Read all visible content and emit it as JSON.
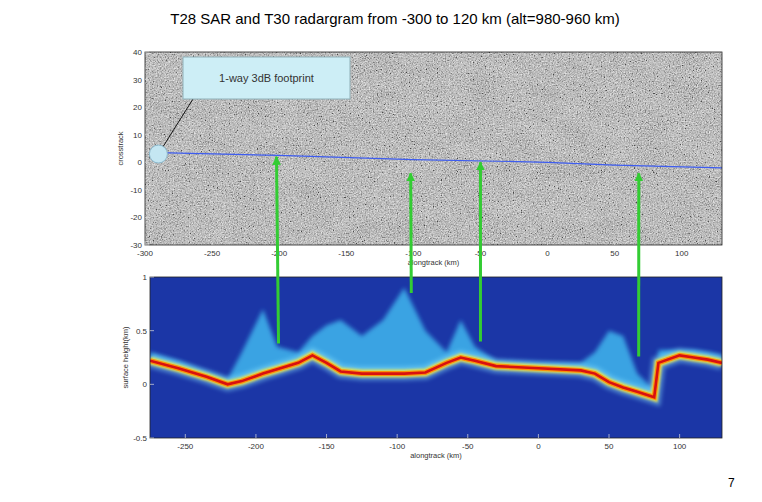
{
  "title": "T28 SAR and T30 radargram  from -300 to 120 km (alt=980-960 km)",
  "page_number": 7,
  "chart_data": [
    {
      "type": "image",
      "xlabel": "alongtrack (km)",
      "ylabel": "crosstrack",
      "xlim": [
        -300,
        130
      ],
      "ylim": [
        -30,
        40
      ],
      "xticks": [
        -300,
        -250,
        -200,
        -150,
        -100,
        -50,
        0,
        50,
        100
      ],
      "yticks": [
        -30,
        -20,
        -10,
        0,
        10,
        20,
        30,
        40
      ],
      "x": [
        -290,
        -200,
        -100,
        0,
        50,
        130
      ],
      "values": [
        3.5,
        2.5,
        1,
        0,
        -1,
        -2
      ],
      "color": "#3d5cf0",
      "annotations": [
        {
          "text": "1-way 3dB footprint",
          "x": -290,
          "y": 3
        }
      ]
    },
    {
      "type": "radargram",
      "xlabel": "alongtrack (km)",
      "ylabel": "surface height(km)",
      "xlim": [
        -275,
        130
      ],
      "ylim": [
        -0.5,
        1
      ],
      "xticks": [
        -250,
        -200,
        -150,
        -100,
        -50,
        0,
        50,
        100
      ],
      "yticks": [
        -0.5,
        0,
        0.5,
        1
      ],
      "x": [
        -275,
        -255,
        -235,
        -220,
        -210,
        -195,
        -185,
        -170,
        -160,
        -150,
        -140,
        -125,
        -110,
        -95,
        -80,
        -65,
        -55,
        -45,
        -30,
        0,
        30,
        40,
        50,
        60,
        70,
        82,
        85,
        100,
        110,
        120,
        130
      ],
      "values": [
        0.22,
        0.15,
        0.07,
        0.0,
        0.03,
        0.1,
        0.14,
        0.2,
        0.27,
        0.2,
        0.12,
        0.1,
        0.1,
        0.1,
        0.11,
        0.2,
        0.25,
        0.22,
        0.17,
        0.15,
        0.13,
        0.1,
        0.02,
        -0.03,
        -0.07,
        -0.12,
        0.2,
        0.27,
        0.25,
        0.23,
        0.2
      ],
      "echo_top": [
        0.3,
        0.22,
        0.12,
        0.05,
        0.3,
        0.7,
        0.35,
        0.3,
        0.45,
        0.55,
        0.6,
        0.45,
        0.6,
        0.9,
        0.5,
        0.3,
        0.6,
        0.35,
        0.22,
        0.2,
        0.2,
        0.3,
        0.5,
        0.45,
        0.1,
        -0.05,
        0.32,
        0.32,
        0.32,
        0.3,
        0.27
      ],
      "color": "#d81010"
    }
  ],
  "arrows": {
    "color": "#33cc33",
    "items": [
      {
        "from": {
          "x": -184,
          "y": 0.38
        },
        "to": {
          "x": -202,
          "y": 2
        }
      },
      {
        "from": {
          "x": -90,
          "y": 0.85
        },
        "to": {
          "x": -102,
          "y": -4
        }
      },
      {
        "from": {
          "x": -41,
          "y": 0.4
        },
        "to": {
          "x": -50,
          "y": 0
        }
      },
      {
        "from": {
          "x": 71,
          "y": 0.26
        },
        "to": {
          "x": 68,
          "y": -4
        }
      }
    ]
  }
}
